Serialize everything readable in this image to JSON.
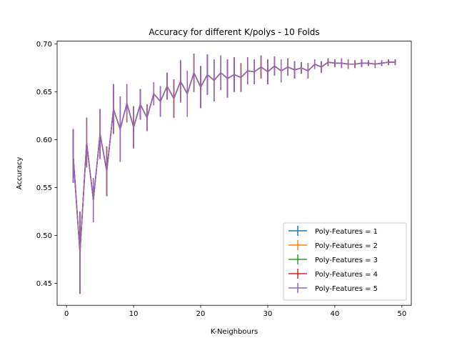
{
  "chart_data": {
    "type": "line",
    "title": "Accuracy for different K/polys - 10 Folds",
    "xlabel": "K-Neighbours",
    "ylabel": "Accuracy",
    "xlim": [
      -1.4,
      51.4
    ],
    "ylim": [
      0.427,
      0.703
    ],
    "xticks": [
      0,
      10,
      20,
      30,
      40,
      50
    ],
    "xtick_labels": [
      "0",
      "10",
      "20",
      "30",
      "40",
      "50"
    ],
    "yticks": [
      0.45,
      0.5,
      0.55,
      0.6,
      0.65,
      0.7
    ],
    "ytick_labels": [
      "0.45",
      "0.50",
      "0.55",
      "0.60",
      "0.65",
      "0.70"
    ],
    "grid": false,
    "legend_position": "lower-right",
    "error_bars": true,
    "x": [
      1,
      2,
      3,
      4,
      5,
      6,
      7,
      8,
      9,
      10,
      11,
      12,
      13,
      14,
      15,
      16,
      17,
      18,
      19,
      20,
      21,
      22,
      23,
      24,
      25,
      26,
      27,
      28,
      29,
      30,
      31,
      32,
      33,
      34,
      35,
      36,
      37,
      38,
      39,
      40,
      41,
      42,
      43,
      44,
      45,
      46,
      47,
      48,
      49
    ],
    "y": [
      0.583,
      0.482,
      0.597,
      0.537,
      0.606,
      0.567,
      0.632,
      0.611,
      0.638,
      0.613,
      0.637,
      0.623,
      0.648,
      0.64,
      0.656,
      0.643,
      0.661,
      0.648,
      0.67,
      0.655,
      0.668,
      0.662,
      0.67,
      0.664,
      0.668,
      0.665,
      0.672,
      0.671,
      0.676,
      0.671,
      0.677,
      0.672,
      0.676,
      0.673,
      0.675,
      0.672,
      0.679,
      0.676,
      0.681,
      0.68,
      0.68,
      0.679,
      0.679,
      0.68,
      0.68,
      0.679,
      0.68,
      0.681,
      0.681
    ],
    "yerr": [
      0.028,
      0.043,
      0.026,
      0.023,
      0.026,
      0.026,
      0.026,
      0.034,
      0.02,
      0.022,
      0.016,
      0.014,
      0.012,
      0.016,
      0.014,
      0.02,
      0.022,
      0.024,
      0.02,
      0.022,
      0.021,
      0.022,
      0.018,
      0.02,
      0.018,
      0.015,
      0.014,
      0.013,
      0.012,
      0.013,
      0.01,
      0.012,
      0.009,
      0.009,
      0.006,
      0.008,
      0.005,
      0.006,
      0.004,
      0.004,
      0.005,
      0.005,
      0.004,
      0.004,
      0.003,
      0.004,
      0.003,
      0.003,
      0.003
    ],
    "series": [
      {
        "name": "Poly-Features = 1",
        "color": "#1f77b4"
      },
      {
        "name": "Poly-Features = 2",
        "color": "#ff7f0e"
      },
      {
        "name": "Poly-Features = 3",
        "color": "#2ca02c"
      },
      {
        "name": "Poly-Features = 4",
        "color": "#d62728"
      },
      {
        "name": "Poly-Features = 5",
        "color": "#9467bd"
      }
    ]
  }
}
